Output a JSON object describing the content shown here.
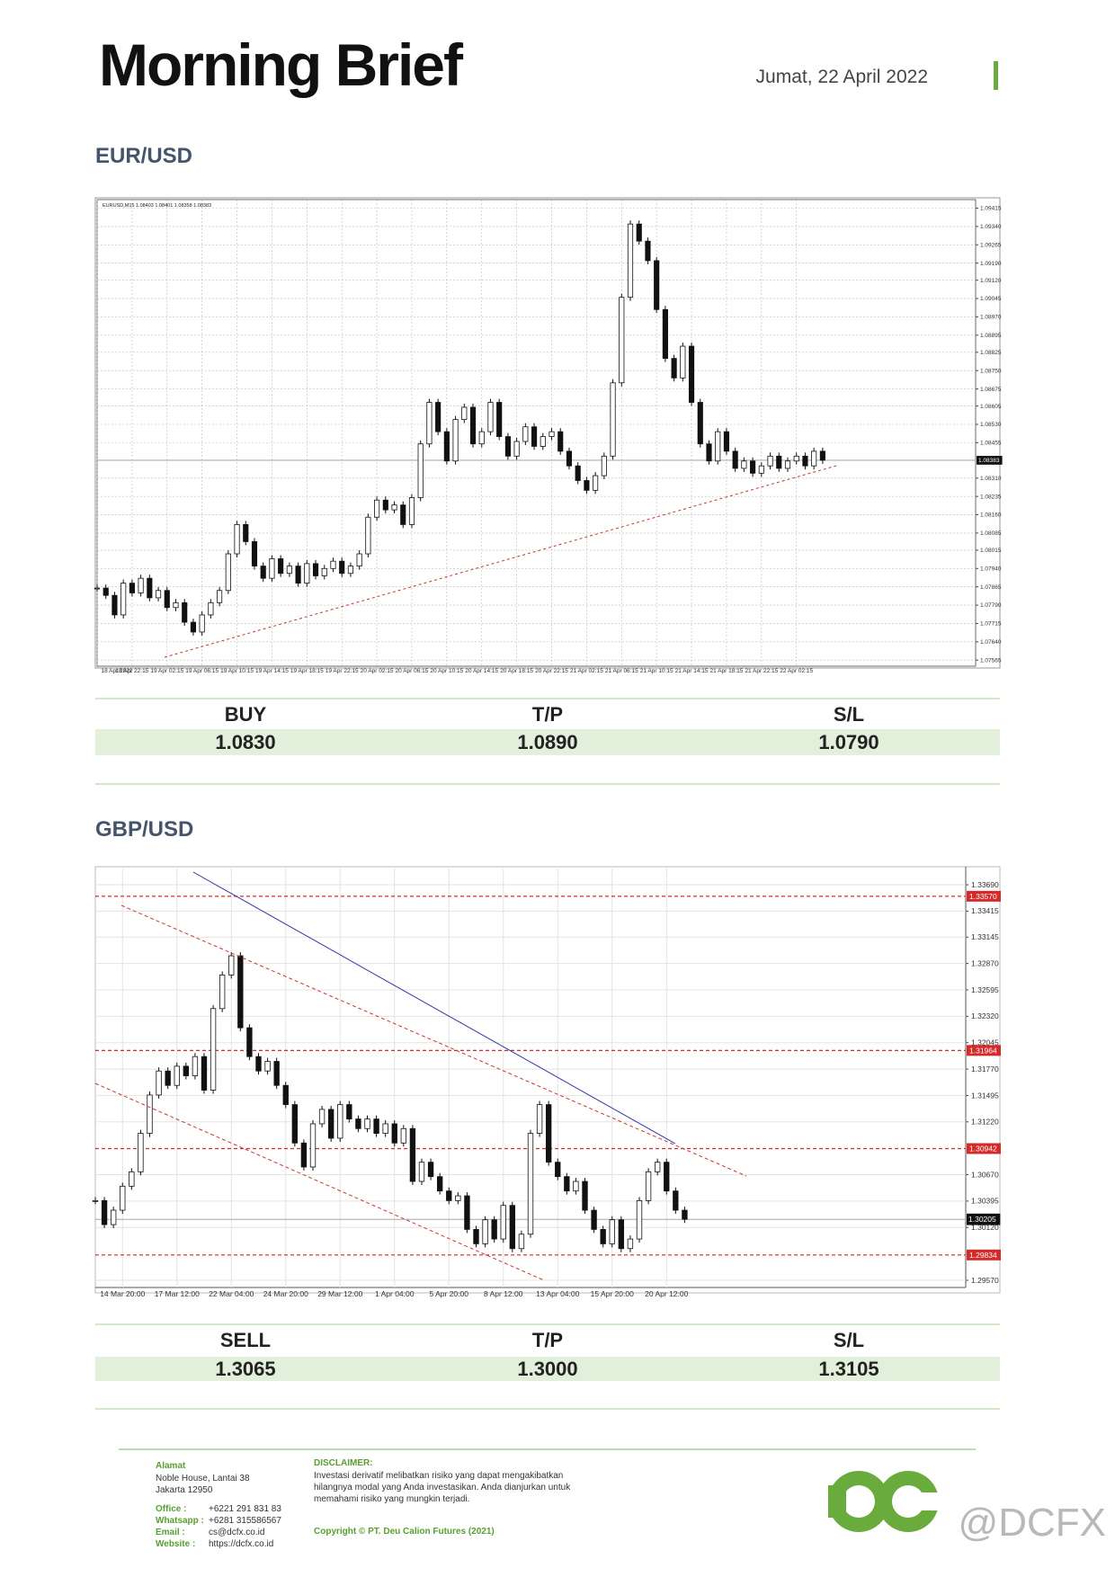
{
  "header": {
    "title": "Morning Brief",
    "date": "Jumat, 22 April 2022"
  },
  "sections": [
    {
      "pair": "EUR/USD",
      "headers": [
        "BUY",
        "T/P",
        "S/L"
      ],
      "values": [
        "1.0830",
        "1.0890",
        "1.0790"
      ]
    },
    {
      "pair": "GBP/USD",
      "headers": [
        "SELL",
        "T/P",
        "S/L"
      ],
      "values": [
        "1.3065",
        "1.3000",
        "1.3105"
      ]
    }
  ],
  "chart_data": [
    {
      "type": "candlestick",
      "info": "EURUSD,M15  1.08403 1.08401 1.08358 1.08383",
      "grid": true,
      "xlim": [
        0,
        100.5
      ],
      "xticks": [
        {
          "value": 0,
          "label": "18 Apr 2022"
        },
        {
          "value": 4,
          "label": "18 Apr 22:15"
        },
        {
          "value": 8,
          "label": "19 Apr 02:15"
        },
        {
          "value": 12,
          "label": "19 Apr 06:15"
        },
        {
          "value": 16,
          "label": "19 Apr 10:15"
        },
        {
          "value": 20,
          "label": "19 Apr 14:15"
        },
        {
          "value": 24,
          "label": "19 Apr 18:15"
        },
        {
          "value": 28,
          "label": "19 Apr 22:15"
        },
        {
          "value": 32,
          "label": "20 Apr 02:15"
        },
        {
          "value": 36,
          "label": "20 Apr 06:15"
        },
        {
          "value": 40,
          "label": "20 Apr 10:15"
        },
        {
          "value": 44,
          "label": "20 Apr 14:15"
        },
        {
          "value": 48,
          "label": "20 Apr 18:15"
        },
        {
          "value": 52,
          "label": "20 Apr 22:15"
        },
        {
          "value": 56,
          "label": "21 Apr 02:15"
        },
        {
          "value": 60,
          "label": "21 Apr 06:15"
        },
        {
          "value": 64,
          "label": "21 Apr 10:15"
        },
        {
          "value": 68,
          "label": "21 Apr 14:15"
        },
        {
          "value": 72,
          "label": "21 Apr 18:15"
        },
        {
          "value": 76,
          "label": "21 Apr 22:15"
        },
        {
          "value": 80,
          "label": "22 Apr 02:15"
        }
      ],
      "ylim": [
        1.0754,
        1.0945
      ],
      "yticks": [
        1.09415,
        {
          "value": 1.0934,
          "label": "1.09340"
        },
        1.09265,
        {
          "value": 1.0919,
          "label": "1.09190"
        },
        {
          "value": 1.0912,
          "label": "1.09120"
        },
        1.09045,
        {
          "value": 1.0897,
          "label": "1.08970"
        },
        1.08895,
        1.08825,
        {
          "value": 1.0875,
          "label": "1.08750"
        },
        1.08675,
        1.08605,
        {
          "value": 1.0853,
          "label": "1.08530"
        },
        1.08455,
        {
          "value": 1.0831,
          "label": "1.08310"
        },
        1.08235,
        {
          "value": 1.0816,
          "label": "1.08160"
        },
        1.08085,
        1.08015,
        {
          "value": 1.0794,
          "label": "1.07940"
        },
        1.07865,
        {
          "value": 1.0779,
          "label": "1.07790"
        },
        1.07715,
        {
          "value": 1.0764,
          "label": "1.07640"
        },
        1.07565
      ],
      "last": 1.08383,
      "values": [
        1.0786,
        1.0783,
        1.0775,
        1.0788,
        1.0784,
        1.079,
        1.0782,
        1.0785,
        1.0778,
        1.078,
        1.0772,
        1.0768,
        1.0775,
        1.078,
        1.0785,
        1.08,
        1.0812,
        1.0805,
        1.0795,
        1.079,
        1.0798,
        1.0792,
        1.0795,
        1.0788,
        1.0796,
        1.0791,
        1.0794,
        1.0797,
        1.0792,
        1.0795,
        1.08,
        1.0815,
        1.0822,
        1.0818,
        1.082,
        1.0812,
        1.0823,
        1.0845,
        1.0862,
        1.085,
        1.0838,
        1.0855,
        1.086,
        1.0845,
        1.085,
        1.0862,
        1.0848,
        1.084,
        1.0846,
        1.0852,
        1.0844,
        1.0848,
        1.085,
        1.0842,
        1.0836,
        1.083,
        1.0826,
        1.0832,
        1.084,
        1.087,
        1.0905,
        1.0935,
        1.0928,
        1.092,
        1.09,
        1.088,
        1.0872,
        1.0885,
        1.0862,
        1.0845,
        1.0838,
        1.085,
        1.0842,
        1.0835,
        1.0838,
        1.0833,
        1.0836,
        1.084,
        1.0835,
        1.0838,
        1.084,
        1.0836,
        1.0842,
        1.08383
      ]
    },
    {
      "type": "candlestick",
      "grid": true,
      "xlim": [
        0,
        96
      ],
      "xticks": [
        {
          "value": 3,
          "label": "14 Mar 20:00"
        },
        {
          "value": 9,
          "label": "17 Mar 12:00"
        },
        {
          "value": 15,
          "label": "22 Mar 04:00"
        },
        {
          "value": 21,
          "label": "24 Mar 20:00"
        },
        {
          "value": 27,
          "label": "29 Mar 12:00"
        },
        {
          "value": 33,
          "label": "1 Apr 04:00"
        },
        {
          "value": 39,
          "label": "5 Apr 20:00"
        },
        {
          "value": 45,
          "label": "8 Apr 12:00"
        },
        {
          "value": 51,
          "label": "13 Apr 04:00"
        },
        {
          "value": 57,
          "label": "15 Apr 20:00"
        },
        {
          "value": 63,
          "label": "20 Apr 12:00"
        }
      ],
      "ylim": [
        1.29495,
        1.33859
      ],
      "yticks": [
        {
          "value": 1.3369,
          "label": "1.33690"
        },
        1.33415,
        1.33145,
        {
          "value": 1.3287,
          "label": "1.32870"
        },
        1.32595,
        {
          "value": 1.3232,
          "label": "1.32320"
        },
        1.32045,
        {
          "value": 1.3177,
          "label": "1.31770"
        },
        1.31495,
        {
          "value": 1.3122,
          "label": "1.31220"
        },
        {
          "value": 1.3067,
          "label": "1.30670"
        },
        1.30395,
        {
          "value": 1.3012,
          "label": "1.30120"
        },
        {
          "value": 1.2957,
          "label": "1.29570"
        }
      ],
      "levels": [
        {
          "value": 1.3357,
          "label": "1.33570"
        },
        1.31964,
        1.30942,
        1.29834
      ],
      "level_color": "#d42a2a",
      "last": 1.30205,
      "values": [
        1.304,
        1.3015,
        1.303,
        1.3055,
        1.307,
        1.311,
        1.315,
        1.3175,
        1.316,
        1.318,
        1.317,
        1.319,
        1.3155,
        1.324,
        1.3275,
        1.3295,
        1.322,
        1.319,
        1.3175,
        1.3185,
        1.316,
        1.314,
        1.31,
        1.3075,
        1.312,
        1.3135,
        1.3105,
        1.314,
        1.3125,
        1.3115,
        1.3125,
        1.311,
        1.312,
        1.31,
        1.3115,
        1.306,
        1.308,
        1.3065,
        1.305,
        1.304,
        1.3045,
        1.301,
        1.2995,
        1.302,
        1.3,
        1.3035,
        1.299,
        1.3005,
        1.311,
        1.314,
        1.308,
        1.3065,
        1.305,
        1.306,
        1.303,
        1.301,
        1.2995,
        1.302,
        1.299,
        1.3,
        1.304,
        1.307,
        1.308,
        1.305,
        1.303,
        1.30205
      ]
    }
  ],
  "footer": {
    "address_title": "Alamat",
    "address": [
      "Noble House, Lantai 38",
      "Jakarta 12950"
    ],
    "contacts": [
      {
        "label": "Office :",
        "value": "+6221 291 831 83"
      },
      {
        "label": "Whatsapp :",
        "value": "+6281 315586567"
      },
      {
        "label": "Email :",
        "value": "cs@dcfx.co.id"
      },
      {
        "label": "Website :",
        "value": "https://dcfx.co.id"
      }
    ],
    "disclaimer_title": "DISCLAIMER:",
    "disclaimer": [
      "Investasi derivatif melibatkan risiko yang dapat mengakibatkan",
      "hilangnya modal yang Anda investasikan. Anda dianjurkan untuk",
      "memahami risiko yang mungkin terjadi."
    ],
    "copyright": "Copyright © PT. Deu Calion Futures (2021)",
    "watermark": "@DCFX"
  }
}
